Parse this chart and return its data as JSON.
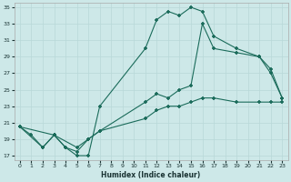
{
  "xlabel": "Humidex (Indice chaleur)",
  "background_color": "#cde8e8",
  "grid_color": "#b8d8d8",
  "line_color": "#1a6b5a",
  "xlim": [
    -0.5,
    23.5
  ],
  "ylim": [
    16.5,
    35.5
  ],
  "yticks": [
    17,
    19,
    21,
    23,
    25,
    27,
    29,
    31,
    33,
    35
  ],
  "xticks": [
    0,
    1,
    2,
    3,
    4,
    5,
    6,
    7,
    8,
    9,
    10,
    11,
    12,
    13,
    14,
    15,
    16,
    17,
    18,
    19,
    20,
    21,
    22,
    23
  ],
  "line1_x": [
    0,
    1,
    2,
    3,
    4,
    5,
    6,
    7,
    11,
    12,
    13,
    14,
    15,
    16,
    17,
    19,
    21,
    22,
    23
  ],
  "line1_y": [
    20.5,
    19.5,
    18.0,
    19.5,
    18.0,
    17.0,
    17.0,
    23.0,
    30.0,
    33.5,
    34.5,
    34.0,
    35.0,
    34.5,
    31.5,
    30.0,
    29.0,
    27.0,
    24.0
  ],
  "line2_x": [
    0,
    2,
    3,
    4,
    5,
    6,
    7,
    11,
    12,
    13,
    14,
    15,
    16,
    17,
    19,
    21,
    22,
    23
  ],
  "line2_y": [
    20.5,
    18.0,
    19.5,
    18.0,
    17.5,
    19.0,
    20.0,
    23.5,
    24.5,
    24.0,
    25.0,
    25.5,
    33.0,
    30.0,
    29.5,
    29.0,
    27.5,
    24.0
  ],
  "line3_x": [
    0,
    3,
    5,
    6,
    7,
    11,
    12,
    13,
    14,
    15,
    16,
    17,
    19,
    21,
    22,
    23
  ],
  "line3_y": [
    20.5,
    19.5,
    18.0,
    19.0,
    20.0,
    21.5,
    22.5,
    23.0,
    23.0,
    23.5,
    24.0,
    24.0,
    23.5,
    23.5,
    23.5,
    23.5
  ]
}
